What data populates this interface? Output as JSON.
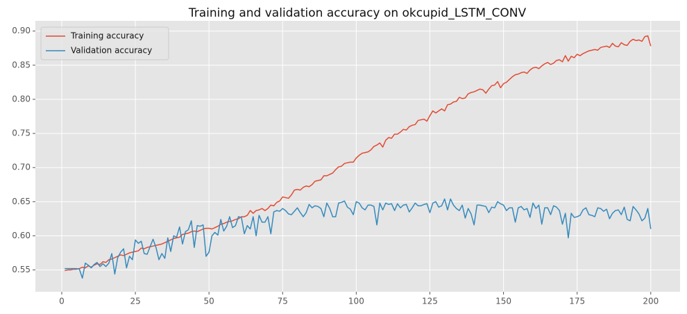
{
  "chart_data": {
    "type": "line",
    "title": "Training and validation accuracy on okcupid_LSTM_CONV",
    "x": [
      1,
      2,
      3,
      4,
      5,
      6,
      7,
      8,
      9,
      10,
      11,
      12,
      13,
      14,
      15,
      16,
      17,
      18,
      19,
      20,
      21,
      22,
      23,
      24,
      25,
      26,
      27,
      28,
      29,
      30,
      31,
      32,
      33,
      34,
      35,
      36,
      37,
      38,
      39,
      40,
      41,
      42,
      43,
      44,
      45,
      46,
      47,
      48,
      49,
      50,
      51,
      52,
      53,
      54,
      55,
      56,
      57,
      58,
      59,
      60,
      61,
      62,
      63,
      64,
      65,
      66,
      67,
      68,
      69,
      70,
      71,
      72,
      73,
      74,
      75,
      76,
      77,
      78,
      79,
      80,
      81,
      82,
      83,
      84,
      85,
      86,
      87,
      88,
      89,
      90,
      91,
      92,
      93,
      94,
      95,
      96,
      97,
      98,
      99,
      100,
      101,
      102,
      103,
      104,
      105,
      106,
      107,
      108,
      109,
      110,
      111,
      112,
      113,
      114,
      115,
      116,
      117,
      118,
      119,
      120,
      121,
      122,
      123,
      124,
      125,
      126,
      127,
      128,
      129,
      130,
      131,
      132,
      133,
      134,
      135,
      136,
      137,
      138,
      139,
      140,
      141,
      142,
      143,
      144,
      145,
      146,
      147,
      148,
      149,
      150,
      151,
      152,
      153,
      154,
      155,
      156,
      157,
      158,
      159,
      160,
      161,
      162,
      163,
      164,
      165,
      166,
      167,
      168,
      169,
      170,
      171,
      172,
      173,
      174,
      175,
      176,
      177,
      178,
      179,
      180,
      181,
      182,
      183,
      184,
      185,
      186,
      187,
      188,
      189,
      190,
      191,
      192,
      193,
      194,
      195,
      196,
      197,
      198,
      199,
      200
    ],
    "series": [
      {
        "name": "Training accuracy",
        "color": "#E24A33",
        "values": [
          0.549,
          0.55,
          0.55,
          0.551,
          0.551,
          0.552,
          0.554,
          0.553,
          0.556,
          0.554,
          0.557,
          0.559,
          0.558,
          0.562,
          0.561,
          0.565,
          0.566,
          0.568,
          0.57,
          0.572,
          0.571,
          0.573,
          0.575,
          0.576,
          0.577,
          0.578,
          0.582,
          0.581,
          0.583,
          0.584,
          0.585,
          0.586,
          0.587,
          0.588,
          0.59,
          0.592,
          0.594,
          0.596,
          0.597,
          0.598,
          0.602,
          0.603,
          0.604,
          0.606,
          0.607,
          0.606,
          0.608,
          0.61,
          0.611,
          0.611,
          0.61,
          0.612,
          0.614,
          0.617,
          0.618,
          0.62,
          0.621,
          0.622,
          0.624,
          0.625,
          0.628,
          0.628,
          0.63,
          0.637,
          0.633,
          0.637,
          0.638,
          0.64,
          0.637,
          0.64,
          0.645,
          0.644,
          0.649,
          0.651,
          0.657,
          0.656,
          0.655,
          0.66,
          0.667,
          0.668,
          0.667,
          0.671,
          0.673,
          0.672,
          0.675,
          0.68,
          0.681,
          0.682,
          0.688,
          0.688,
          0.69,
          0.692,
          0.697,
          0.701,
          0.702,
          0.706,
          0.707,
          0.708,
          0.708,
          0.714,
          0.718,
          0.721,
          0.722,
          0.723,
          0.726,
          0.731,
          0.733,
          0.736,
          0.73,
          0.74,
          0.744,
          0.743,
          0.749,
          0.749,
          0.752,
          0.756,
          0.755,
          0.76,
          0.762,
          0.763,
          0.769,
          0.77,
          0.771,
          0.768,
          0.776,
          0.783,
          0.78,
          0.783,
          0.786,
          0.783,
          0.792,
          0.793,
          0.796,
          0.797,
          0.803,
          0.801,
          0.802,
          0.808,
          0.81,
          0.811,
          0.813,
          0.815,
          0.814,
          0.809,
          0.815,
          0.82,
          0.821,
          0.826,
          0.817,
          0.823,
          0.825,
          0.829,
          0.833,
          0.836,
          0.837,
          0.839,
          0.84,
          0.838,
          0.843,
          0.846,
          0.847,
          0.845,
          0.849,
          0.852,
          0.854,
          0.851,
          0.853,
          0.857,
          0.858,
          0.855,
          0.864,
          0.856,
          0.863,
          0.861,
          0.866,
          0.864,
          0.867,
          0.869,
          0.871,
          0.872,
          0.873,
          0.872,
          0.876,
          0.877,
          0.878,
          0.876,
          0.882,
          0.878,
          0.877,
          0.883,
          0.88,
          0.879,
          0.885,
          0.888,
          0.886,
          0.887,
          0.885,
          0.892,
          0.893,
          0.878
        ]
      },
      {
        "name": "Validation accuracy",
        "color": "#348ABD",
        "values": [
          0.552,
          0.552,
          0.552,
          0.552,
          0.552,
          0.551,
          0.538,
          0.56,
          0.557,
          0.553,
          0.558,
          0.561,
          0.555,
          0.559,
          0.555,
          0.56,
          0.574,
          0.544,
          0.568,
          0.576,
          0.581,
          0.553,
          0.57,
          0.565,
          0.594,
          0.589,
          0.592,
          0.574,
          0.573,
          0.584,
          0.595,
          0.583,
          0.565,
          0.574,
          0.567,
          0.597,
          0.577,
          0.6,
          0.598,
          0.613,
          0.588,
          0.606,
          0.609,
          0.622,
          0.583,
          0.615,
          0.614,
          0.616,
          0.57,
          0.576,
          0.6,
          0.605,
          0.601,
          0.624,
          0.607,
          0.614,
          0.628,
          0.612,
          0.615,
          0.628,
          0.627,
          0.603,
          0.615,
          0.61,
          0.628,
          0.6,
          0.63,
          0.62,
          0.62,
          0.628,
          0.603,
          0.635,
          0.637,
          0.636,
          0.64,
          0.637,
          0.632,
          0.631,
          0.636,
          0.641,
          0.634,
          0.628,
          0.634,
          0.646,
          0.641,
          0.644,
          0.643,
          0.64,
          0.628,
          0.648,
          0.64,
          0.628,
          0.628,
          0.648,
          0.649,
          0.651,
          0.642,
          0.639,
          0.631,
          0.65,
          0.648,
          0.641,
          0.638,
          0.645,
          0.645,
          0.643,
          0.616,
          0.648,
          0.638,
          0.648,
          0.646,
          0.647,
          0.637,
          0.647,
          0.641,
          0.645,
          0.646,
          0.635,
          0.641,
          0.648,
          0.644,
          0.644,
          0.646,
          0.647,
          0.634,
          0.648,
          0.65,
          0.642,
          0.644,
          0.654,
          0.638,
          0.654,
          0.645,
          0.64,
          0.637,
          0.645,
          0.626,
          0.64,
          0.632,
          0.616,
          0.645,
          0.645,
          0.644,
          0.643,
          0.634,
          0.642,
          0.641,
          0.65,
          0.647,
          0.645,
          0.637,
          0.641,
          0.641,
          0.62,
          0.641,
          0.643,
          0.638,
          0.64,
          0.627,
          0.648,
          0.64,
          0.645,
          0.617,
          0.641,
          0.641,
          0.631,
          0.644,
          0.642,
          0.637,
          0.617,
          0.633,
          0.597,
          0.633,
          0.627,
          0.628,
          0.63,
          0.638,
          0.641,
          0.631,
          0.63,
          0.628,
          0.641,
          0.64,
          0.636,
          0.639,
          0.625,
          0.633,
          0.637,
          0.638,
          0.631,
          0.642,
          0.624,
          0.622,
          0.643,
          0.638,
          0.632,
          0.622,
          0.626,
          0.64,
          0.61
        ]
      }
    ],
    "xlim": [
      -8.95,
      209.95
    ],
    "xticks": [
      0,
      25,
      50,
      75,
      100,
      125,
      150,
      175,
      200
    ],
    "ylim": [
      0.518,
      0.915
    ],
    "yticks": [
      {
        "value": 0.55,
        "label": "0.55"
      },
      {
        "value": 0.6,
        "label": "0.60"
      },
      {
        "value": 0.65,
        "label": "0.65"
      },
      {
        "value": 0.7,
        "label": "0.70"
      },
      {
        "value": 0.75,
        "label": "0.75"
      },
      {
        "value": 0.8,
        "label": "0.80"
      },
      {
        "value": 0.85,
        "label": "0.85"
      },
      {
        "value": 0.9,
        "label": "0.90"
      }
    ],
    "grid": true,
    "legend": "upper left"
  }
}
